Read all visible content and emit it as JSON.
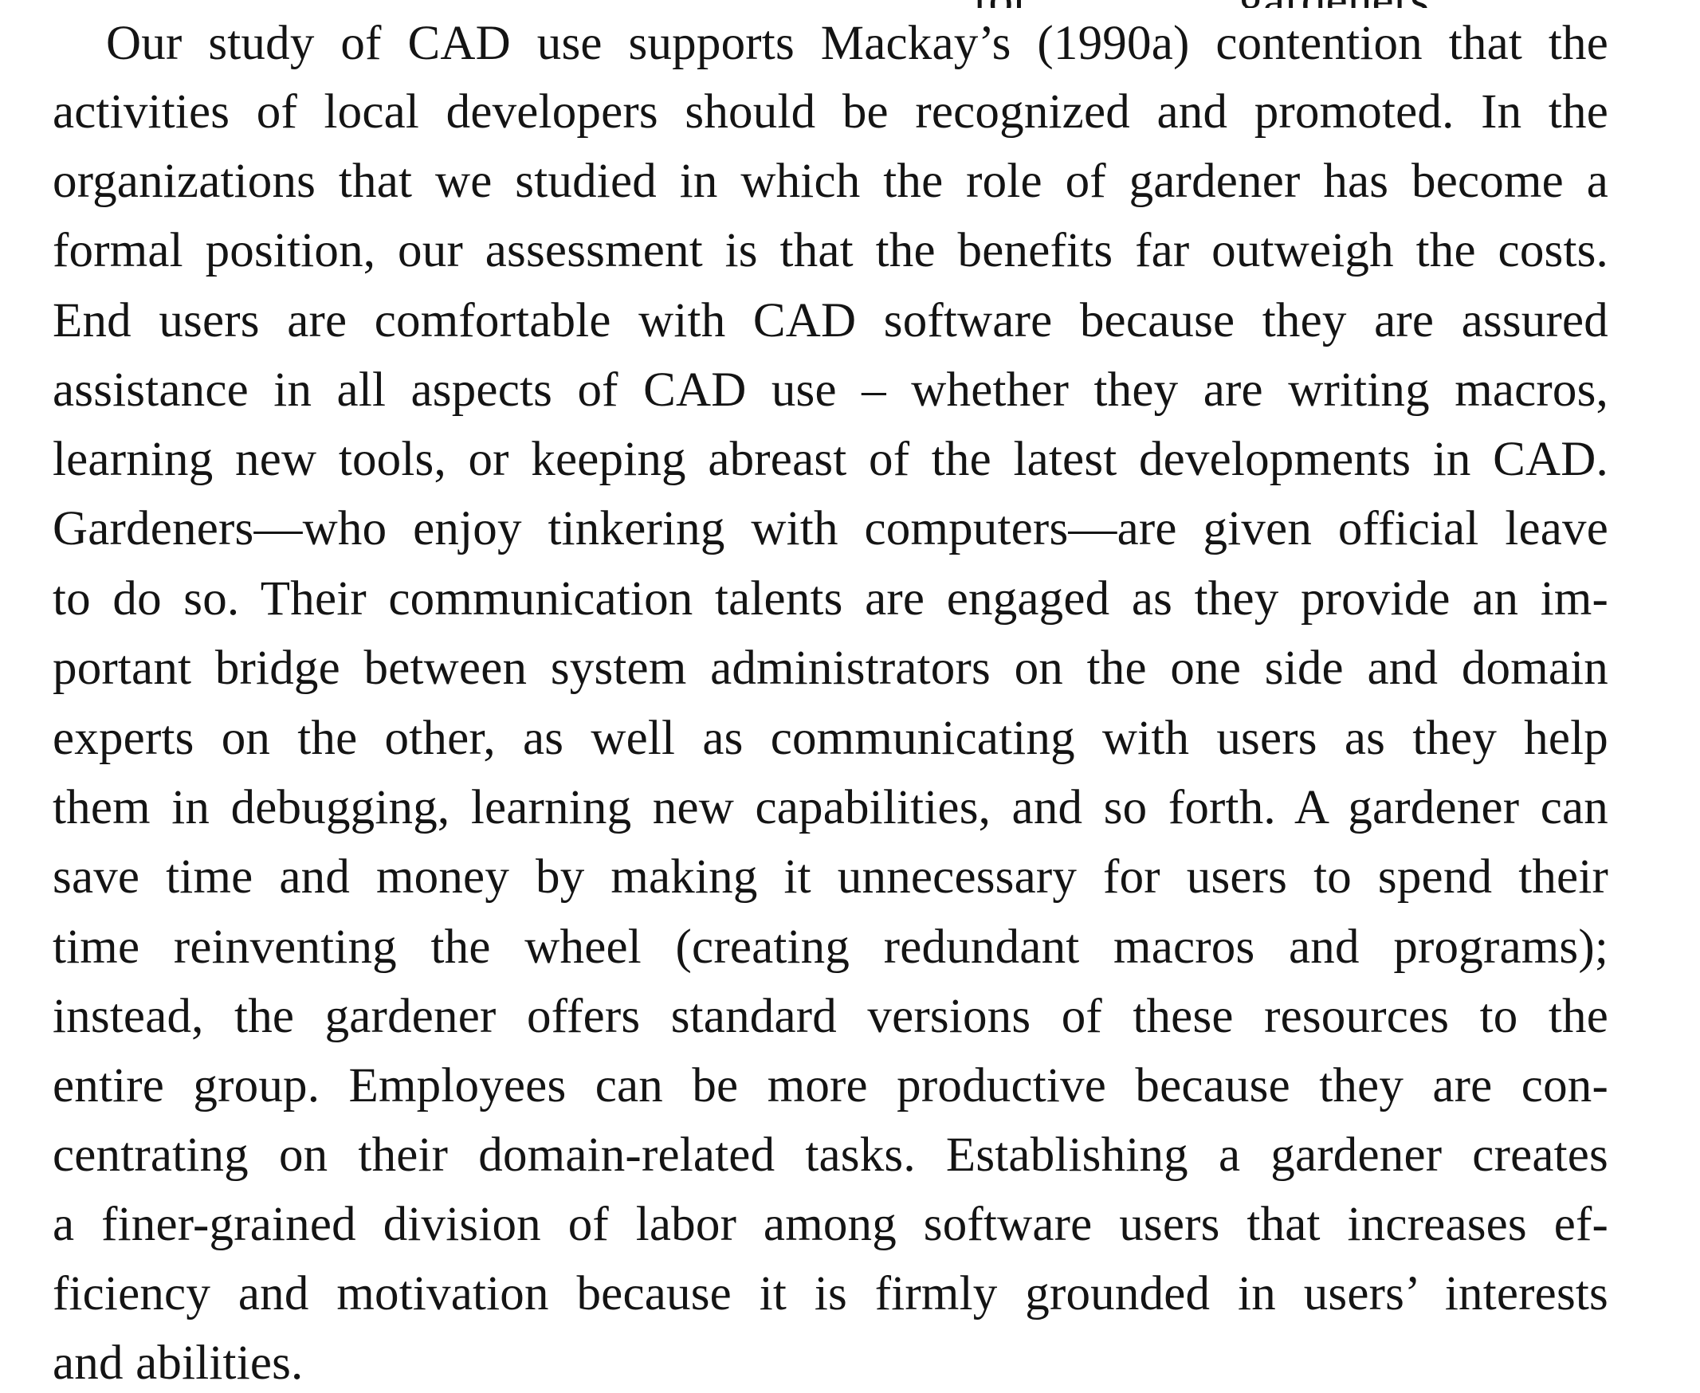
{
  "cut_top_fragment": "for ... ... ... ... gardeners ...",
  "paragraph": {
    "lines": [
      "Our study of CAD use supports Mackay’s (1990a) contention that the",
      "activities of local developers should be recognized and promoted. In the",
      "organizations that we studied in which the role of gardener has become a",
      "formal position, our assessment is that the benefits far outweigh the costs.",
      "End users are comfortable with CAD software because they are assured",
      "assistance in all aspects of CAD use – whether they are writing macros,",
      "learning new tools, or keeping abreast of the latest developments in CAD.",
      "Gardeners—who enjoy tinkering with computers—are given official leave",
      "to do so. Their communication talents are engaged as they provide an im-",
      "portant bridge between system administrators on the one side and domain",
      "experts on the other, as well as communicating with users as they help",
      "them in debugging, learning new capabilities, and so forth. A gardener can",
      "save time and money by making it unnecessary for users to spend their",
      "time reinventing the wheel (creating redundant macros and programs);",
      "instead, the gardener offers standard versions of these resources to the",
      "entire group. Employees can be more productive because they are con-",
      "centrating on their domain-related tasks. Establishing a gardener creates",
      "a finer-grained division of labor among software users that increases ef-",
      "ficiency and motivation because it is firmly grounded in users’ interests",
      "and abilities."
    ]
  }
}
